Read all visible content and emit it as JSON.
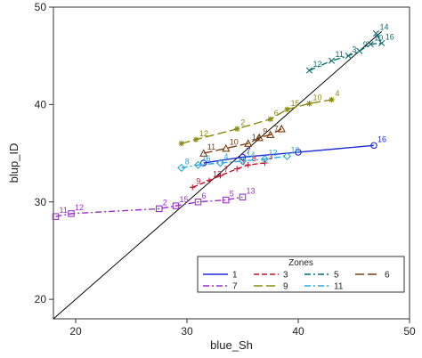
{
  "chart_data": {
    "type": "line",
    "xlabel": "blue_Sh",
    "ylabel": "blup_ID",
    "xlim": [
      18,
      50
    ],
    "ylim": [
      18,
      50
    ],
    "xticks": [
      20,
      30,
      40,
      50
    ],
    "yticks": [
      20,
      30,
      40,
      50
    ],
    "grid": false,
    "legend_title": "Zones",
    "legend_position": "bottom-right",
    "reference_line": {
      "from": [
        18,
        18
      ],
      "to": [
        47.5,
        47.5
      ],
      "color": "#000000"
    },
    "series": [
      {
        "name": "1",
        "color": "#1f2bd6",
        "dash": "solid",
        "marker": "circle",
        "points": [
          {
            "x": 31.5,
            "y": 34.0,
            "label": ""
          },
          {
            "x": 35.0,
            "y": 34.6,
            "label": "7"
          },
          {
            "x": 40.0,
            "y": 35.1,
            "label": ""
          },
          {
            "x": 46.8,
            "y": 35.8,
            "label": "16"
          }
        ]
      },
      {
        "name": "3",
        "color": "#c8102e",
        "dash": "dashed",
        "marker": "plus",
        "points": [
          {
            "x": 30.5,
            "y": 31.5,
            "label": "9"
          },
          {
            "x": 32.0,
            "y": 32.2,
            "label": "12"
          },
          {
            "x": 33.0,
            "y": 32.7,
            "label": "7"
          },
          {
            "x": 34.5,
            "y": 33.4,
            "label": "4"
          },
          {
            "x": 35.5,
            "y": 33.8,
            "label": "8"
          },
          {
            "x": 37.0,
            "y": 34.0,
            "label": "3"
          }
        ]
      },
      {
        "name": "5",
        "color": "#0b6e6e",
        "dash": "dashdot",
        "marker": "x",
        "points": [
          {
            "x": 41.0,
            "y": 43.5,
            "label": "12"
          },
          {
            "x": 43.0,
            "y": 44.5,
            "label": "11"
          },
          {
            "x": 44.5,
            "y": 45.0,
            "label": "3"
          },
          {
            "x": 45.5,
            "y": 45.5,
            "label": "9"
          },
          {
            "x": 46.5,
            "y": 46.2,
            "label": "10"
          },
          {
            "x": 47.5,
            "y": 46.3,
            "label": "16"
          },
          {
            "x": 47.0,
            "y": 47.3,
            "label": "14"
          }
        ]
      },
      {
        "name": "6",
        "color": "#7a3e10",
        "dash": "longdash",
        "marker": "triangle",
        "points": [
          {
            "x": 31.5,
            "y": 35.0,
            "label": "11"
          },
          {
            "x": 33.5,
            "y": 35.5,
            "label": "10"
          },
          {
            "x": 35.5,
            "y": 36.0,
            "label": "14"
          },
          {
            "x": 36.5,
            "y": 36.6,
            "label": "9"
          },
          {
            "x": 37.5,
            "y": 36.9,
            "label": "7"
          },
          {
            "x": 38.5,
            "y": 37.5,
            "label": ""
          }
        ]
      },
      {
        "name": "7",
        "color": "#9b2fc9",
        "dash": "dashdot",
        "marker": "square",
        "points": [
          {
            "x": 18.2,
            "y": 28.5,
            "label": "11"
          },
          {
            "x": 19.6,
            "y": 28.8,
            "label": "12"
          },
          {
            "x": 27.5,
            "y": 29.3,
            "label": "2"
          },
          {
            "x": 29.0,
            "y": 29.6,
            "label": "15"
          },
          {
            "x": 31.0,
            "y": 30.0,
            "label": "6"
          },
          {
            "x": 33.5,
            "y": 30.2,
            "label": "5"
          },
          {
            "x": 35.0,
            "y": 30.5,
            "label": "13"
          }
        ]
      },
      {
        "name": "9",
        "color": "#8a8a10",
        "dash": "longdash",
        "marker": "asterisk",
        "points": [
          {
            "x": 29.5,
            "y": 36.0,
            "label": ""
          },
          {
            "x": 30.8,
            "y": 36.4,
            "label": "12"
          },
          {
            "x": 34.5,
            "y": 37.5,
            "label": "2"
          },
          {
            "x": 37.5,
            "y": 38.5,
            "label": "6"
          },
          {
            "x": 39.0,
            "y": 39.5,
            "label": "15"
          },
          {
            "x": 41.0,
            "y": 40.1,
            "label": "10"
          },
          {
            "x": 43.0,
            "y": 40.5,
            "label": "4"
          }
        ]
      },
      {
        "name": "11",
        "color": "#2aa7e0",
        "dash": "dashdot",
        "marker": "diamond",
        "points": [
          {
            "x": 29.5,
            "y": 33.5,
            "label": "8"
          },
          {
            "x": 31.0,
            "y": 33.8,
            "label": "16"
          },
          {
            "x": 33.0,
            "y": 34.0,
            "label": "4"
          },
          {
            "x": 35.0,
            "y": 34.2,
            "label": "14"
          },
          {
            "x": 37.0,
            "y": 34.4,
            "label": "12"
          },
          {
            "x": 39.0,
            "y": 34.7,
            "label": "10"
          }
        ]
      }
    ]
  }
}
